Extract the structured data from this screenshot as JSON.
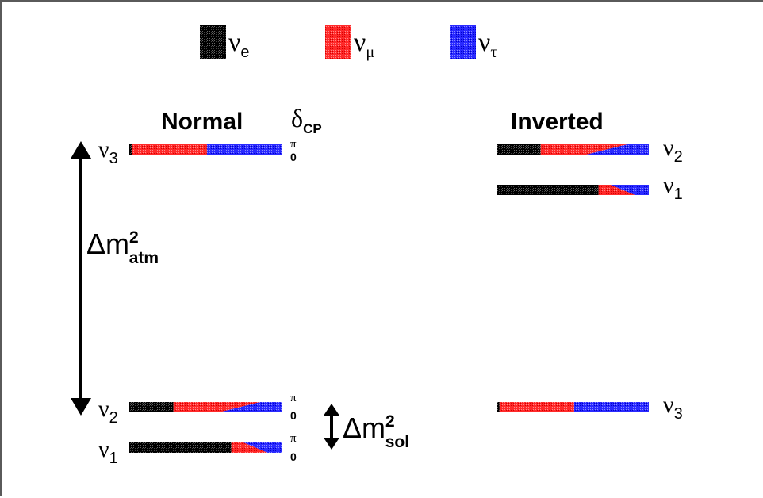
{
  "legend": [
    {
      "symbol": "ν",
      "sub": "e",
      "color": "#000000"
    },
    {
      "symbol": "ν",
      "sub": "μ",
      "color": "#ff2a2a"
    },
    {
      "symbol": "ν",
      "sub": "τ",
      "color": "#2a2aff"
    }
  ],
  "colors": {
    "nu_e": "#000000",
    "nu_mu": "#ff2a2a",
    "nu_tau": "#2a2aff"
  },
  "normal": {
    "title": "Normal",
    "delta_cp": {
      "symbol": "δ",
      "sub": "CP"
    },
    "levels": [
      {
        "symbol": "ν",
        "sub": "3",
        "pi_label": "π",
        "zero_label": "0",
        "fractions": {
          "e": 0.02,
          "mu_top": 0.49,
          "mu_bottom": 0.49
        }
      },
      {
        "symbol": "ν",
        "sub": "2",
        "pi_label": "π",
        "zero_label": "0",
        "fractions": {
          "e": 0.29,
          "mu_top": 0.57,
          "mu_bottom": 0.3
        }
      },
      {
        "symbol": "ν",
        "sub": "1",
        "pi_label": "π",
        "zero_label": "0",
        "fractions": {
          "e": 0.67,
          "mu_top": 0.08,
          "mu_bottom": 0.24
        }
      }
    ],
    "atm": {
      "base": "Δm",
      "sup": "2",
      "sub": "atm"
    },
    "sol": {
      "base": "Δm",
      "sup": "2",
      "sub": "sol"
    }
  },
  "inverted": {
    "title": "Inverted",
    "levels": [
      {
        "symbol": "ν",
        "sub": "2",
        "fractions": {
          "e": 0.29,
          "mu_top": 0.57,
          "mu_bottom": 0.3
        }
      },
      {
        "symbol": "ν",
        "sub": "1",
        "fractions": {
          "e": 0.67,
          "mu_top": 0.08,
          "mu_bottom": 0.24
        }
      },
      {
        "symbol": "ν",
        "sub": "3",
        "fractions": {
          "e": 0.02,
          "mu_top": 0.49,
          "mu_bottom": 0.49
        }
      }
    ]
  }
}
